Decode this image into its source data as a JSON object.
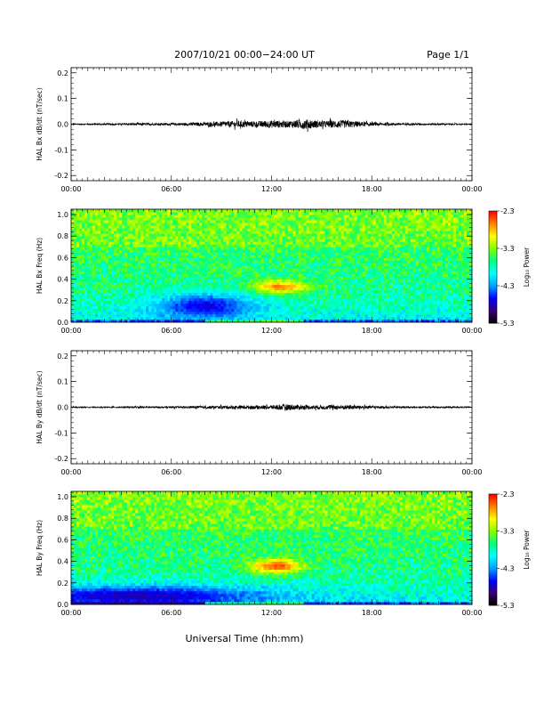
{
  "header": {
    "title": "2007/10/21  00:00−24:00 UT",
    "page": "Page 1/1"
  },
  "footer": {
    "xlabel": "Universal Time (hh:mm)"
  },
  "colorbar": {
    "label": "Log₁₀ Power",
    "ticks": [
      "-2.3",
      "-3.3",
      "-4.3",
      "-5.3"
    ],
    "range": [
      -5.3,
      -2.3
    ],
    "colors": [
      "#000000",
      "#3a0070",
      "#0000ff",
      "#00a0ff",
      "#00ffff",
      "#00ff80",
      "#80ff00",
      "#ffff00",
      "#ff8000",
      "#ff0000"
    ]
  },
  "chart_data": [
    {
      "type": "line",
      "name": "bx_time",
      "ylabel": "HAL Bx dB/dt (nT/sec)",
      "ylim": [
        -0.22,
        0.22
      ],
      "yticks": [
        "0.2",
        "0.1",
        "0.0",
        "-0.1",
        "-0.2"
      ],
      "ytick_values": [
        0.2,
        0.1,
        0.0,
        -0.1,
        -0.2
      ],
      "xlim": [
        "00:00",
        "24:00"
      ],
      "xticks": [
        "00:00",
        "06:00",
        "12:00",
        "18:00",
        "00:00"
      ],
      "series": [
        {
          "x": [
            0,
            2,
            4,
            6,
            8,
            9,
            10,
            11,
            12,
            13,
            14,
            15,
            16,
            17,
            18,
            20,
            22,
            24
          ],
          "amplitude": [
            0.002,
            0.003,
            0.004,
            0.004,
            0.007,
            0.01,
            0.013,
            0.011,
            0.015,
            0.013,
            0.02,
            0.012,
            0.016,
            0.012,
            0.006,
            0.004,
            0.003,
            0.002
          ]
        }
      ]
    },
    {
      "type": "heatmap",
      "name": "bx_spectrogram",
      "ylabel": "HAL Bx Freq (Hz)",
      "ylim": [
        0,
        1.05
      ],
      "yticks": [
        "1.0",
        "0.8",
        "0.6",
        "0.4",
        "0.2",
        "0.0"
      ],
      "ytick_values": [
        1.0,
        0.8,
        0.6,
        0.4,
        0.2,
        0.0
      ],
      "xlim": [
        "00:00",
        "24:00"
      ],
      "xticks": [
        "00:00",
        "06:00",
        "12:00",
        "18:00",
        "00:00"
      ],
      "zlabel": "Log₁₀ Power",
      "zlim": [
        -5.3,
        -2.3
      ],
      "features": [
        {
          "t_center": 12.5,
          "f_center": 0.33,
          "t_width": 1.8,
          "f_width": 0.06,
          "log_power": -2.6
        },
        {
          "t_center": 8.0,
          "f_center": 0.15,
          "t_width": 3.0,
          "f_width": 0.12,
          "log_power": -4.7
        }
      ]
    },
    {
      "type": "line",
      "name": "by_time",
      "ylabel": "HAL By dB/dt (nT/sec)",
      "ylim": [
        -0.22,
        0.22
      ],
      "yticks": [
        "0.2",
        "0.1",
        "0.0",
        "-0.1",
        "-0.2"
      ],
      "ytick_values": [
        0.2,
        0.1,
        0.0,
        -0.1,
        -0.2
      ],
      "xlim": [
        "00:00",
        "24:00"
      ],
      "xticks": [
        "00:00",
        "06:00",
        "12:00",
        "18:00",
        "00:00"
      ],
      "series": [
        {
          "x": [
            0,
            2,
            4,
            6,
            8,
            9,
            10,
            11,
            12,
            13,
            14,
            15,
            16,
            17,
            18,
            20,
            22,
            24
          ],
          "amplitude": [
            0.002,
            0.002,
            0.003,
            0.003,
            0.005,
            0.006,
            0.007,
            0.007,
            0.008,
            0.012,
            0.008,
            0.008,
            0.009,
            0.008,
            0.005,
            0.003,
            0.003,
            0.002
          ]
        }
      ]
    },
    {
      "type": "heatmap",
      "name": "by_spectrogram",
      "ylabel": "HAL By Freq (Hz)",
      "ylim": [
        0,
        1.05
      ],
      "yticks": [
        "1.0",
        "0.8",
        "0.6",
        "0.4",
        "0.2",
        "0.0"
      ],
      "ytick_values": [
        1.0,
        0.8,
        0.6,
        0.4,
        0.2,
        0.0
      ],
      "xlim": [
        "00:00",
        "24:00"
      ],
      "xticks": [
        "00:00",
        "06:00",
        "12:00",
        "18:00",
        "00:00"
      ],
      "zlabel": "Log₁₀ Power",
      "zlim": [
        -5.3,
        -2.3
      ],
      "features": [
        {
          "t_center": 12.3,
          "f_center": 0.36,
          "t_width": 1.6,
          "f_width": 0.07,
          "log_power": -2.5
        },
        {
          "t_center": 4.0,
          "f_center": 0.08,
          "t_width": 8.0,
          "f_width": 0.1,
          "log_power": -4.8
        }
      ]
    }
  ]
}
